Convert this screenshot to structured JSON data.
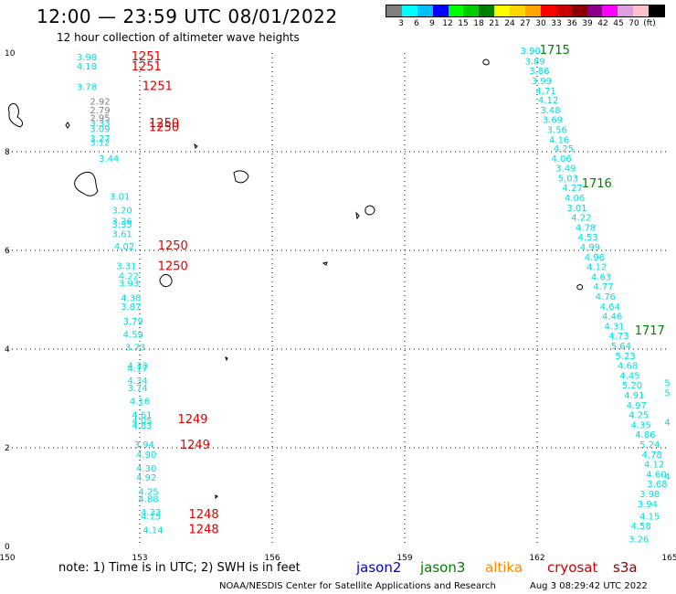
{
  "title": "12:00 — 23:59 UTC 08/01/2022",
  "subtitle": "12 hour collection of altimeter wave heights",
  "colorbar": {
    "colors": [
      "#808080",
      "#00ffff",
      "#00bfff",
      "#0000ff",
      "#00ff00",
      "#00cc00",
      "#008000",
      "#ffff00",
      "#ffd700",
      "#ffa500",
      "#ff0000",
      "#cc0000",
      "#8b0000",
      "#8b008b",
      "#ff00ff",
      "#dda0dd",
      "#ffc0cb",
      "#000000"
    ],
    "labels": [
      "3",
      "6",
      "9",
      "12",
      "15",
      "18",
      "21",
      "24",
      "27",
      "30",
      "33",
      "36",
      "39",
      "42",
      "45",
      "70",
      "(ft)"
    ]
  },
  "map": {
    "lon_range": [
      150,
      165
    ],
    "lat_range": [
      0,
      10
    ],
    "x_ticks": [
      "150",
      "153",
      "156",
      "159",
      "162",
      "165"
    ],
    "y_ticks": [
      "0",
      "2",
      "4",
      "6",
      "8",
      "10"
    ],
    "grid": "dotted"
  },
  "time_labels": [
    {
      "text": "1251",
      "lon": 153.15,
      "lat": 9.85,
      "color": "#e00000"
    },
    {
      "text": "1251",
      "lon": 153.15,
      "lat": 9.65,
      "color": "#e00000"
    },
    {
      "text": "1251",
      "lon": 153.4,
      "lat": 9.25,
      "color": "#e00000"
    },
    {
      "text": "1250",
      "lon": 153.55,
      "lat": 8.5,
      "color": "#e00000"
    },
    {
      "text": "1250",
      "lon": 153.55,
      "lat": 8.42,
      "color": "#e00000"
    },
    {
      "text": "1250",
      "lon": 153.75,
      "lat": 6.02,
      "color": "#e00000"
    },
    {
      "text": "1250",
      "lon": 153.75,
      "lat": 5.6,
      "color": "#e00000"
    },
    {
      "text": "1249",
      "lon": 154.2,
      "lat": 2.5,
      "color": "#e00000"
    },
    {
      "text": "1249",
      "lon": 154.25,
      "lat": 1.98,
      "color": "#e00000"
    },
    {
      "text": "1248",
      "lon": 154.45,
      "lat": 0.57,
      "color": "#e00000"
    },
    {
      "text": "1248",
      "lon": 154.45,
      "lat": 0.27,
      "color": "#e00000"
    },
    {
      "text": "1715",
      "lon": 162.4,
      "lat": 9.98,
      "color": "#008000"
    },
    {
      "text": "1716",
      "lon": 163.35,
      "lat": 7.28,
      "color": "#008000"
    },
    {
      "text": "1717",
      "lon": 164.55,
      "lat": 4.3,
      "color": "#008000"
    }
  ],
  "wave_heights": [
    {
      "v": "3.98",
      "lon": 151.8,
      "lat": 9.85,
      "c": "#00e0e0"
    },
    {
      "v": "4.18",
      "lon": 151.8,
      "lat": 9.67,
      "c": "#00e0e0"
    },
    {
      "v": "3.78",
      "lon": 151.8,
      "lat": 9.25,
      "c": "#00e0e0"
    },
    {
      "v": "2.92",
      "lon": 152.1,
      "lat": 8.95,
      "c": "#808080"
    },
    {
      "v": "2.79",
      "lon": 152.1,
      "lat": 8.78,
      "c": "#808080"
    },
    {
      "v": "2.95",
      "lon": 152.1,
      "lat": 8.62,
      "c": "#808080"
    },
    {
      "v": "3.33",
      "lon": 152.1,
      "lat": 8.52,
      "c": "#00e0e0"
    },
    {
      "v": "3.09",
      "lon": 152.1,
      "lat": 8.4,
      "c": "#00e0e0"
    },
    {
      "v": "3.27",
      "lon": 152.1,
      "lat": 8.2,
      "c": "#00e0e0"
    },
    {
      "v": "3.12",
      "lon": 152.1,
      "lat": 8.12,
      "c": "#00e0e0"
    },
    {
      "v": "3.44",
      "lon": 152.3,
      "lat": 7.8,
      "c": "#00e0e0"
    },
    {
      "v": "3.01",
      "lon": 152.55,
      "lat": 7.03,
      "c": "#00e0e0"
    },
    {
      "v": "3.20",
      "lon": 152.6,
      "lat": 6.75,
      "c": "#00e0e0"
    },
    {
      "v": "3.26",
      "lon": 152.6,
      "lat": 6.53,
      "c": "#00e0e0"
    },
    {
      "v": "3.35",
      "lon": 152.6,
      "lat": 6.46,
      "c": "#00e0e0"
    },
    {
      "v": "3.61",
      "lon": 152.6,
      "lat": 6.27,
      "c": "#00e0e0"
    },
    {
      "v": "4.02",
      "lon": 152.65,
      "lat": 6.02,
      "c": "#00e0e0"
    },
    {
      "v": "3.31",
      "lon": 152.7,
      "lat": 5.62,
      "c": "#00e0e0"
    },
    {
      "v": "4.22",
      "lon": 152.75,
      "lat": 5.42,
      "c": "#00e0e0"
    },
    {
      "v": "3.93",
      "lon": 152.75,
      "lat": 5.27,
      "c": "#00e0e0"
    },
    {
      "v": "4.38",
      "lon": 152.8,
      "lat": 4.97,
      "c": "#00e0e0"
    },
    {
      "v": "3.87",
      "lon": 152.8,
      "lat": 4.8,
      "c": "#00e0e0"
    },
    {
      "v": "3.79",
      "lon": 152.85,
      "lat": 4.5,
      "c": "#00e0e0"
    },
    {
      "v": "4.59",
      "lon": 152.85,
      "lat": 4.23,
      "c": "#00e0e0"
    },
    {
      "v": "3.73",
      "lon": 152.9,
      "lat": 3.97,
      "c": "#00e0e0"
    },
    {
      "v": "4.33",
      "lon": 152.95,
      "lat": 3.6,
      "c": "#00e0e0"
    },
    {
      "v": "4.17",
      "lon": 152.95,
      "lat": 3.55,
      "c": "#00e0e0"
    },
    {
      "v": "4.34",
      "lon": 152.95,
      "lat": 3.3,
      "c": "#00e0e0"
    },
    {
      "v": "3.74",
      "lon": 152.95,
      "lat": 3.15,
      "c": "#00e0e0"
    },
    {
      "v": "4.16",
      "lon": 153.0,
      "lat": 2.88,
      "c": "#00e0e0"
    },
    {
      "v": "4.61",
      "lon": 153.05,
      "lat": 2.6,
      "c": "#00e0e0"
    },
    {
      "v": "4.05",
      "lon": 153.05,
      "lat": 2.48,
      "c": "#00e0e0"
    },
    {
      "v": "4.83",
      "lon": 153.05,
      "lat": 2.39,
      "c": "#00e0e0"
    },
    {
      "v": "3.94",
      "lon": 153.1,
      "lat": 2.0,
      "c": "#00e0e0"
    },
    {
      "v": "4.90",
      "lon": 153.15,
      "lat": 1.8,
      "c": "#00e0e0"
    },
    {
      "v": "4.30",
      "lon": 153.15,
      "lat": 1.52,
      "c": "#00e0e0"
    },
    {
      "v": "4.92",
      "lon": 153.15,
      "lat": 1.33,
      "c": "#00e0e0"
    },
    {
      "v": "4.25",
      "lon": 153.2,
      "lat": 1.05,
      "c": "#00e0e0"
    },
    {
      "v": "4.88",
      "lon": 153.2,
      "lat": 0.9,
      "c": "#00e0e0"
    },
    {
      "v": "4.33",
      "lon": 153.25,
      "lat": 0.63,
      "c": "#00e0e0"
    },
    {
      "v": "4.15",
      "lon": 153.25,
      "lat": 0.55,
      "c": "#00e0e0"
    },
    {
      "v": "4.14",
      "lon": 153.3,
      "lat": 0.27,
      "c": "#00e0e0"
    },
    {
      "v": "3.90",
      "lon": 161.85,
      "lat": 9.98,
      "c": "#00e0e0"
    },
    {
      "v": "3.89",
      "lon": 161.95,
      "lat": 9.77,
      "c": "#00e0e0"
    },
    {
      "v": "3.86",
      "lon": 162.05,
      "lat": 9.57,
      "c": "#00e0e0"
    },
    {
      "v": "3.99",
      "lon": 162.1,
      "lat": 9.37,
      "c": "#00e0e0"
    },
    {
      "v": "4.71",
      "lon": 162.2,
      "lat": 9.17,
      "c": "#00e0e0"
    },
    {
      "v": "4.12",
      "lon": 162.25,
      "lat": 8.98,
      "c": "#00e0e0"
    },
    {
      "v": "3.48",
      "lon": 162.3,
      "lat": 8.78,
      "c": "#00e0e0"
    },
    {
      "v": "3.69",
      "lon": 162.35,
      "lat": 8.58,
      "c": "#00e0e0"
    },
    {
      "v": "3.56",
      "lon": 162.45,
      "lat": 8.38,
      "c": "#00e0e0"
    },
    {
      "v": "4.16",
      "lon": 162.5,
      "lat": 8.18,
      "c": "#00e0e0"
    },
    {
      "v": "4.25",
      "lon": 162.6,
      "lat": 8.0,
      "c": "#00e0e0"
    },
    {
      "v": "4.06",
      "lon": 162.55,
      "lat": 7.8,
      "c": "#00e0e0"
    },
    {
      "v": "3.49",
      "lon": 162.65,
      "lat": 7.6,
      "c": "#00e0e0"
    },
    {
      "v": "5.03",
      "lon": 162.7,
      "lat": 7.4,
      "c": "#00e0e0"
    },
    {
      "v": "4.27",
      "lon": 162.8,
      "lat": 7.2,
      "c": "#00e0e0"
    },
    {
      "v": "4.06",
      "lon": 162.85,
      "lat": 7.0,
      "c": "#00e0e0"
    },
    {
      "v": "3.01",
      "lon": 162.9,
      "lat": 6.8,
      "c": "#00e0e0"
    },
    {
      "v": "4.22",
      "lon": 163.0,
      "lat": 6.6,
      "c": "#00e0e0"
    },
    {
      "v": "4.78",
      "lon": 163.1,
      "lat": 6.4,
      "c": "#00e0e0"
    },
    {
      "v": "4.53",
      "lon": 163.15,
      "lat": 6.2,
      "c": "#00e0e0"
    },
    {
      "v": "4.99",
      "lon": 163.2,
      "lat": 6.0,
      "c": "#00e0e0"
    },
    {
      "v": "4.96",
      "lon": 163.3,
      "lat": 5.8,
      "c": "#00e0e0"
    },
    {
      "v": "4.12",
      "lon": 163.35,
      "lat": 5.6,
      "c": "#00e0e0"
    },
    {
      "v": "4.63",
      "lon": 163.45,
      "lat": 5.4,
      "c": "#00e0e0"
    },
    {
      "v": "4.77",
      "lon": 163.5,
      "lat": 5.2,
      "c": "#00e0e0"
    },
    {
      "v": "4.76",
      "lon": 163.55,
      "lat": 5.0,
      "c": "#00e0e0"
    },
    {
      "v": "4.64",
      "lon": 163.65,
      "lat": 4.8,
      "c": "#00e0e0"
    },
    {
      "v": "4.46",
      "lon": 163.7,
      "lat": 4.6,
      "c": "#00e0e0"
    },
    {
      "v": "4.31",
      "lon": 163.75,
      "lat": 4.4,
      "c": "#00e0e0"
    },
    {
      "v": "4.73",
      "lon": 163.85,
      "lat": 4.2,
      "c": "#00e0e0"
    },
    {
      "v": "5.64",
      "lon": 163.9,
      "lat": 4.0,
      "c": "#00e0e0"
    },
    {
      "v": "5.23",
      "lon": 164.0,
      "lat": 3.8,
      "c": "#00e0e0"
    },
    {
      "v": "4.68",
      "lon": 164.05,
      "lat": 3.6,
      "c": "#00e0e0"
    },
    {
      "v": "4.45",
      "lon": 164.1,
      "lat": 3.4,
      "c": "#00e0e0"
    },
    {
      "v": "5.20",
      "lon": 164.15,
      "lat": 3.2,
      "c": "#00e0e0"
    },
    {
      "v": "4.91",
      "lon": 164.2,
      "lat": 3.0,
      "c": "#00e0e0"
    },
    {
      "v": "4.97",
      "lon": 164.25,
      "lat": 2.8,
      "c": "#00e0e0"
    },
    {
      "v": "4.25",
      "lon": 164.3,
      "lat": 2.6,
      "c": "#00e0e0"
    },
    {
      "v": "4.35",
      "lon": 164.35,
      "lat": 2.4,
      "c": "#00e0e0"
    },
    {
      "v": "4.86",
      "lon": 164.45,
      "lat": 2.2,
      "c": "#00e0e0"
    },
    {
      "v": "5.24",
      "lon": 164.55,
      "lat": 2.0,
      "c": "#00e0e0"
    },
    {
      "v": "4.78",
      "lon": 164.6,
      "lat": 1.8,
      "c": "#00e0e0"
    },
    {
      "v": "4.12",
      "lon": 164.65,
      "lat": 1.6,
      "c": "#00e0e0"
    },
    {
      "v": "4.60",
      "lon": 164.7,
      "lat": 1.4,
      "c": "#00e0e0"
    },
    {
      "v": "3.68",
      "lon": 164.72,
      "lat": 1.2,
      "c": "#00e0e0"
    },
    {
      "v": "3.98",
      "lon": 164.55,
      "lat": 1.0,
      "c": "#00e0e0"
    },
    {
      "v": "3.94",
      "lon": 164.5,
      "lat": 0.8,
      "c": "#00e0e0"
    },
    {
      "v": "4.15",
      "lon": 164.55,
      "lat": 0.55,
      "c": "#00e0e0"
    },
    {
      "v": "4.58",
      "lon": 164.35,
      "lat": 0.35,
      "c": "#00e0e0"
    },
    {
      "v": "3.26",
      "lon": 164.3,
      "lat": 0.08,
      "c": "#00e0e0"
    },
    {
      "v": "5",
      "lon": 164.95,
      "lat": 3.25,
      "c": "#00e0e0"
    },
    {
      "v": "5",
      "lon": 164.95,
      "lat": 3.05,
      "c": "#00e0e0"
    },
    {
      "v": "4",
      "lon": 164.95,
      "lat": 2.45,
      "c": "#00e0e0"
    },
    {
      "v": "4",
      "lon": 164.95,
      "lat": 1.35,
      "c": "#00e0e0"
    }
  ],
  "footer": {
    "note": "note: 1) Time is in UTC; 2) SWH is in feet",
    "satellites": [
      {
        "name": "jason2",
        "color": "#0000cc"
      },
      {
        "name": "jason3",
        "color": "#008000"
      },
      {
        "name": "altika",
        "color": "#ff8c00"
      },
      {
        "name": "cryosat",
        "color": "#cc0000"
      },
      {
        "name": "s3a",
        "color": "#8b0000"
      }
    ],
    "credit": "NOAA/NESDIS Center for Satellite Applications and Research",
    "timestamp": "Aug  3 08:29:42 UTC 2022"
  }
}
